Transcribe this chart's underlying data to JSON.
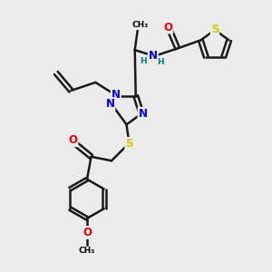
{
  "background_color": "#ebebeb",
  "atom_colors": {
    "C": "#000000",
    "N": "#0000ee",
    "O": "#ee0000",
    "S": "#cccc00",
    "H": "#008080"
  },
  "bond_color": "#1a1a1a",
  "bond_width": 1.8,
  "font_size_atom": 8.5,
  "font_size_small": 6.5
}
